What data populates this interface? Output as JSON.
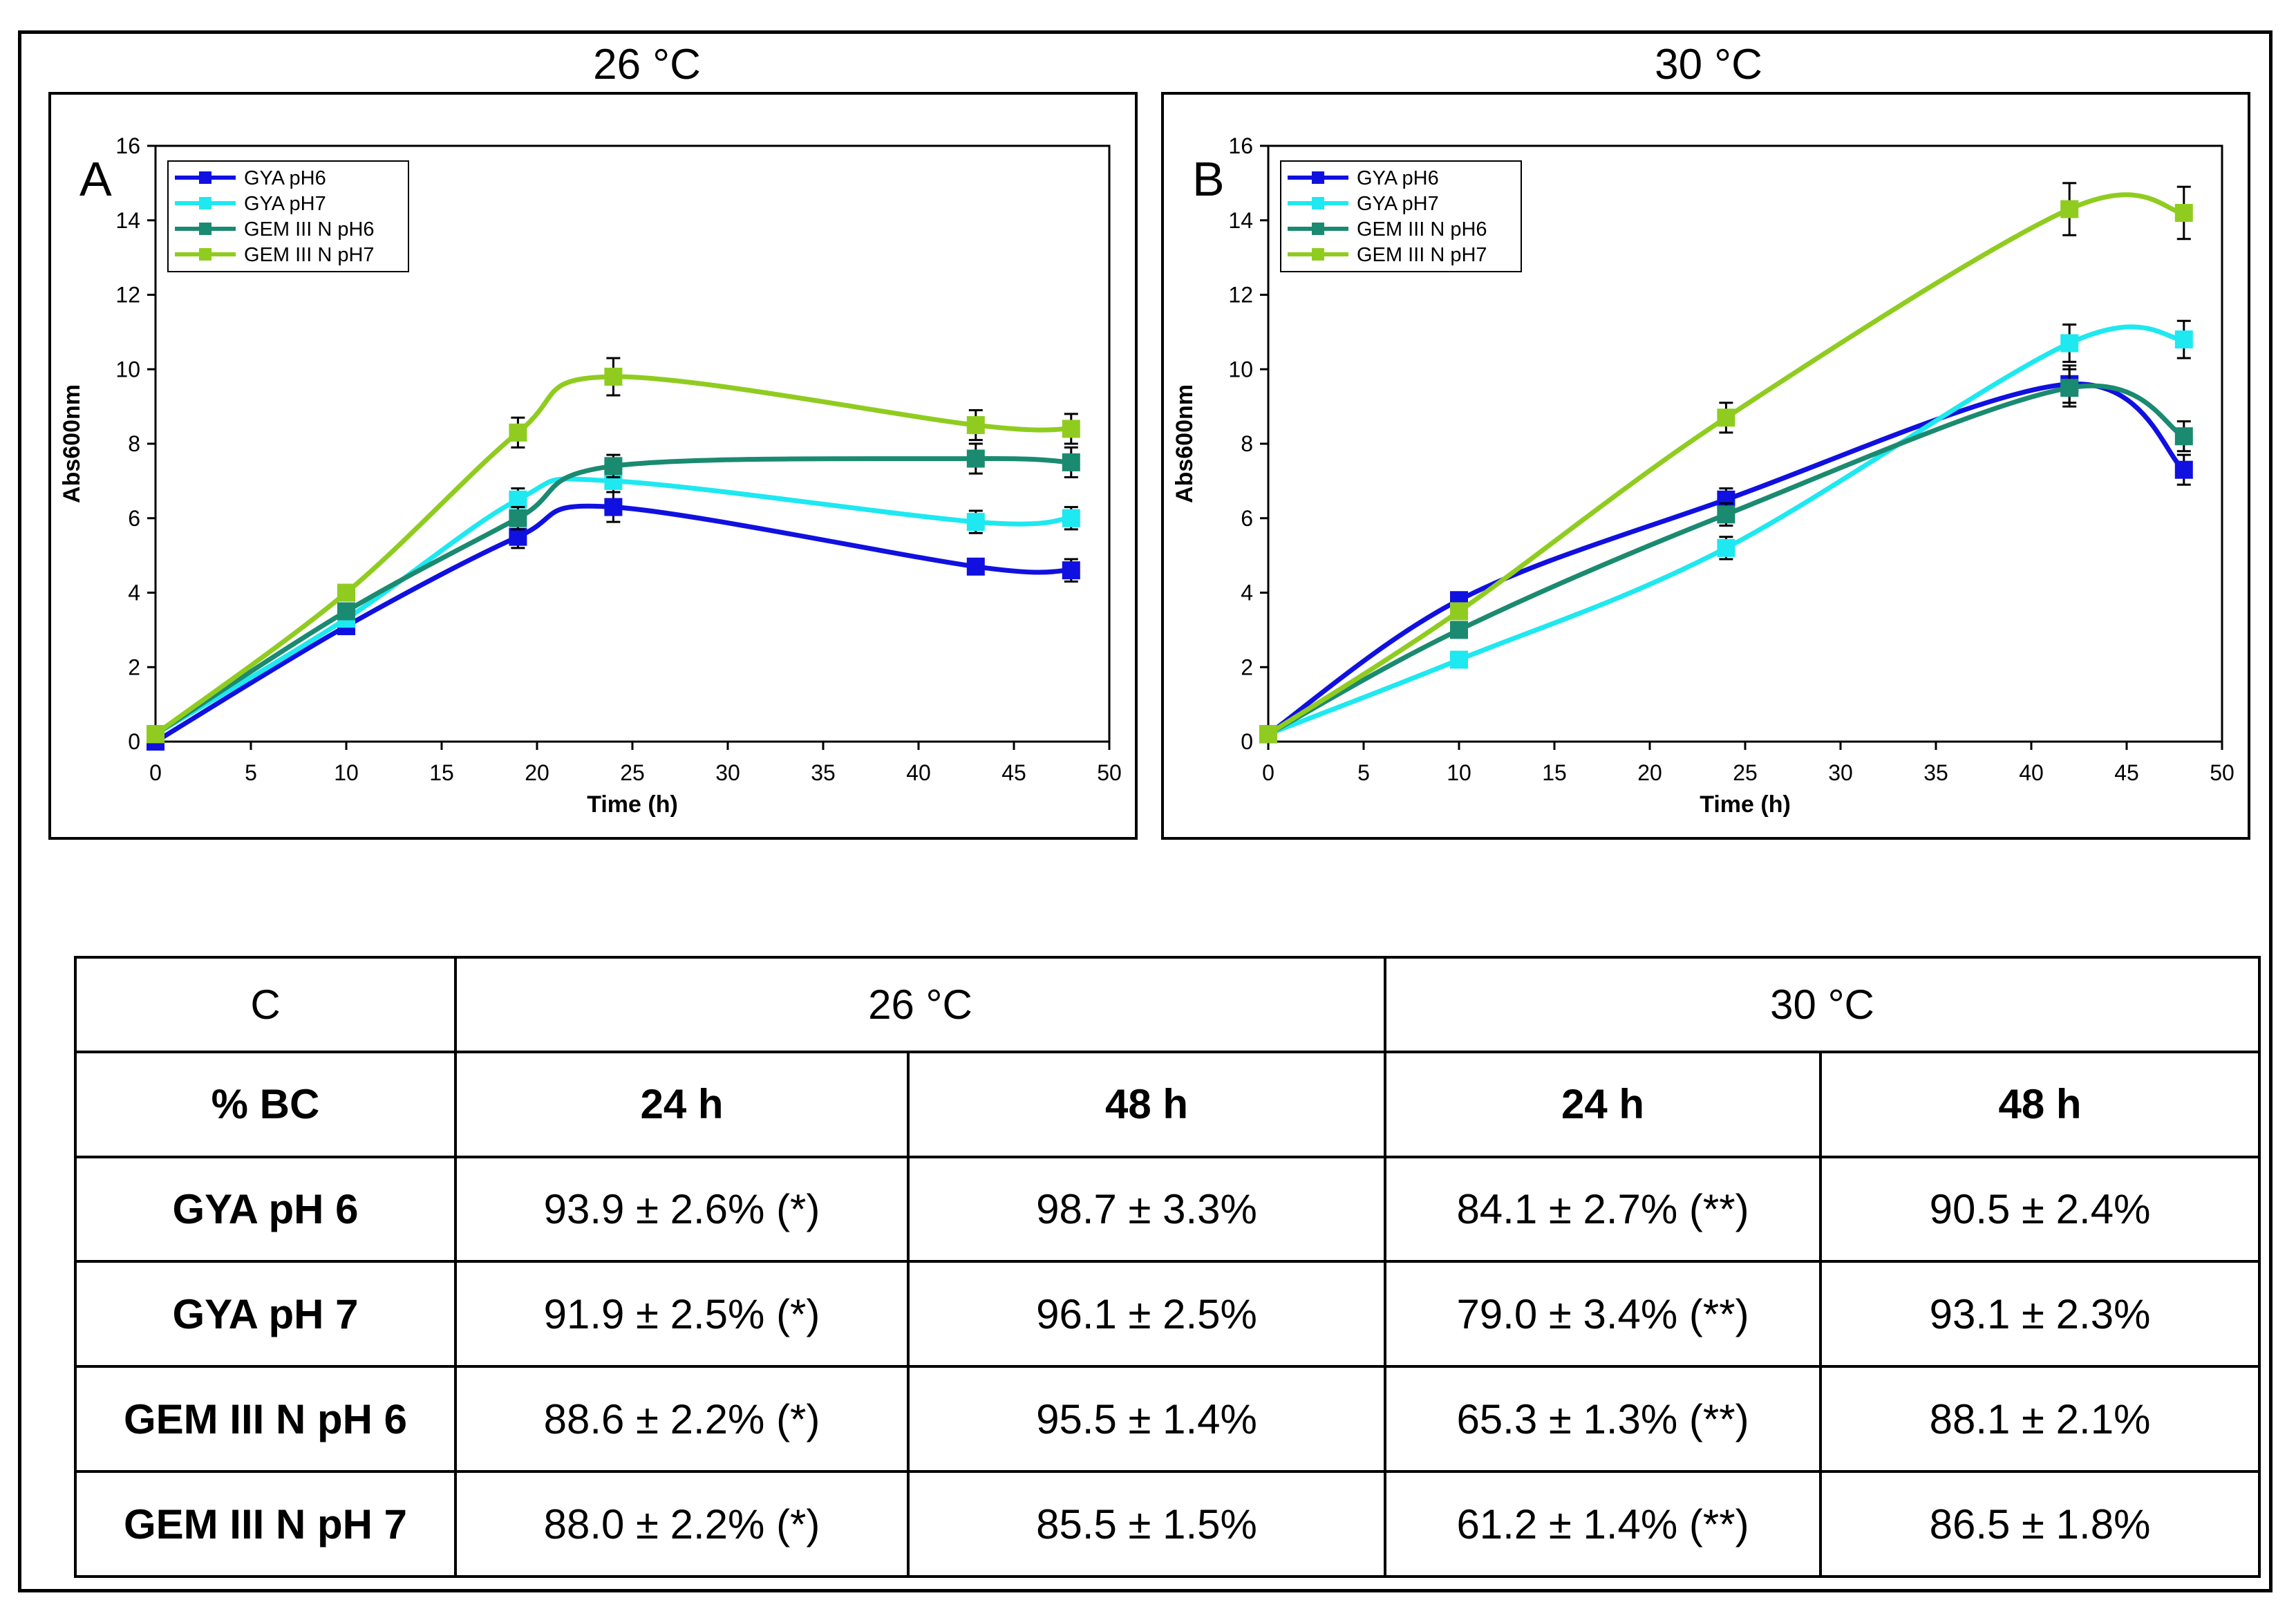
{
  "chart_data": [
    {
      "type": "line",
      "panel_label": "A",
      "title": "26 °C",
      "xlabel": "Time (h)",
      "ylabel": "Abs600nm",
      "xlim": [
        0,
        50
      ],
      "ylim": [
        0,
        16
      ],
      "x_ticks": [
        "0",
        "5",
        "10",
        "15",
        "20",
        "25",
        "30",
        "35",
        "40",
        "45",
        "50"
      ],
      "y_ticks": [
        "0",
        "2",
        "4",
        "6",
        "8",
        "10",
        "12",
        "14",
        "16"
      ],
      "legend": "top-left",
      "x": [
        0,
        10,
        19,
        24,
        43,
        48
      ],
      "series": [
        {
          "name": "GYA pH6",
          "color": "#1010e0",
          "values": [
            0.0,
            3.1,
            5.5,
            6.3,
            4.7,
            4.6
          ],
          "errors": [
            0.1,
            0.2,
            0.3,
            0.4,
            0.2,
            0.3
          ]
        },
        {
          "name": "GYA pH7",
          "color": "#1ee8f0",
          "values": [
            0.2,
            3.3,
            6.5,
            7.0,
            5.9,
            6.0
          ],
          "errors": [
            0.1,
            0.2,
            0.3,
            0.3,
            0.3,
            0.3
          ]
        },
        {
          "name": "GEM III N pH6",
          "color": "#1a8a70",
          "values": [
            0.2,
            3.5,
            6.0,
            7.4,
            7.6,
            7.5
          ],
          "errors": [
            0.1,
            0.2,
            0.3,
            0.3,
            0.4,
            0.4
          ]
        },
        {
          "name": "GEM III N pH7",
          "color": "#90cc20",
          "values": [
            0.2,
            4.0,
            8.3,
            9.8,
            8.5,
            8.4
          ],
          "errors": [
            0.1,
            0.2,
            0.4,
            0.5,
            0.4,
            0.4
          ]
        }
      ]
    },
    {
      "type": "line",
      "panel_label": "B",
      "title": "30 °C",
      "xlabel": "Time (h)",
      "ylabel": "Abs600nm",
      "xlim": [
        0,
        50
      ],
      "ylim": [
        0,
        16
      ],
      "x_ticks": [
        "0",
        "5",
        "10",
        "15",
        "20",
        "25",
        "30",
        "35",
        "40",
        "45",
        "50"
      ],
      "y_ticks": [
        "0",
        "2",
        "4",
        "6",
        "8",
        "10",
        "12",
        "14",
        "16"
      ],
      "legend": "top-left",
      "x": [
        0,
        10,
        24,
        42,
        48
      ],
      "series": [
        {
          "name": "GYA pH6",
          "color": "#1010e0",
          "values": [
            0.2,
            3.8,
            6.5,
            9.6,
            7.3
          ],
          "errors": [
            0.1,
            0.2,
            0.3,
            0.5,
            0.4
          ]
        },
        {
          "name": "GYA pH7",
          "color": "#1ee8f0",
          "values": [
            0.2,
            2.2,
            5.2,
            10.7,
            10.8
          ],
          "errors": [
            0.1,
            0.2,
            0.3,
            0.5,
            0.5
          ]
        },
        {
          "name": "GEM III N pH6",
          "color": "#1a8a70",
          "values": [
            0.2,
            3.0,
            6.1,
            9.5,
            8.2
          ],
          "errors": [
            0.1,
            0.2,
            0.3,
            0.5,
            0.4
          ]
        },
        {
          "name": "GEM III N pH7",
          "color": "#90cc20",
          "values": [
            0.2,
            3.5,
            8.7,
            14.3,
            14.2
          ],
          "errors": [
            0.1,
            0.2,
            0.4,
            0.7,
            0.7
          ]
        }
      ]
    },
    {
      "type": "table",
      "label": "C",
      "header_groups": [
        "26 °C",
        "30 °C"
      ],
      "row_header_title": "% BC",
      "columns": [
        "24 h",
        "48 h",
        "24 h",
        "48 h"
      ],
      "rows": [
        {
          "name": "GYA pH 6",
          "cells": [
            "93.9 ± 2.6% (*)",
            "98.7 ± 3.3%",
            "84.1 ± 2.7% (**)",
            "90.5 ± 2.4%"
          ]
        },
        {
          "name": "GYA pH 7",
          "cells": [
            "91.9 ± 2.5% (*)",
            "96.1 ± 2.5%",
            "79.0 ± 3.4% (**)",
            "93.1 ± 2.3%"
          ]
        },
        {
          "name": "GEM III N pH 6",
          "cells": [
            "88.6 ± 2.2% (*)",
            "95.5 ± 1.4%",
            "65.3 ± 1.3% (**)",
            "88.1 ± 2.1%"
          ]
        },
        {
          "name": "GEM III N pH 7",
          "cells": [
            "88.0 ± 2.2% (*)",
            "85.5 ± 1.5%",
            "61.2 ± 1.4% (**)",
            "86.5 ± 1.8%"
          ]
        }
      ]
    }
  ]
}
